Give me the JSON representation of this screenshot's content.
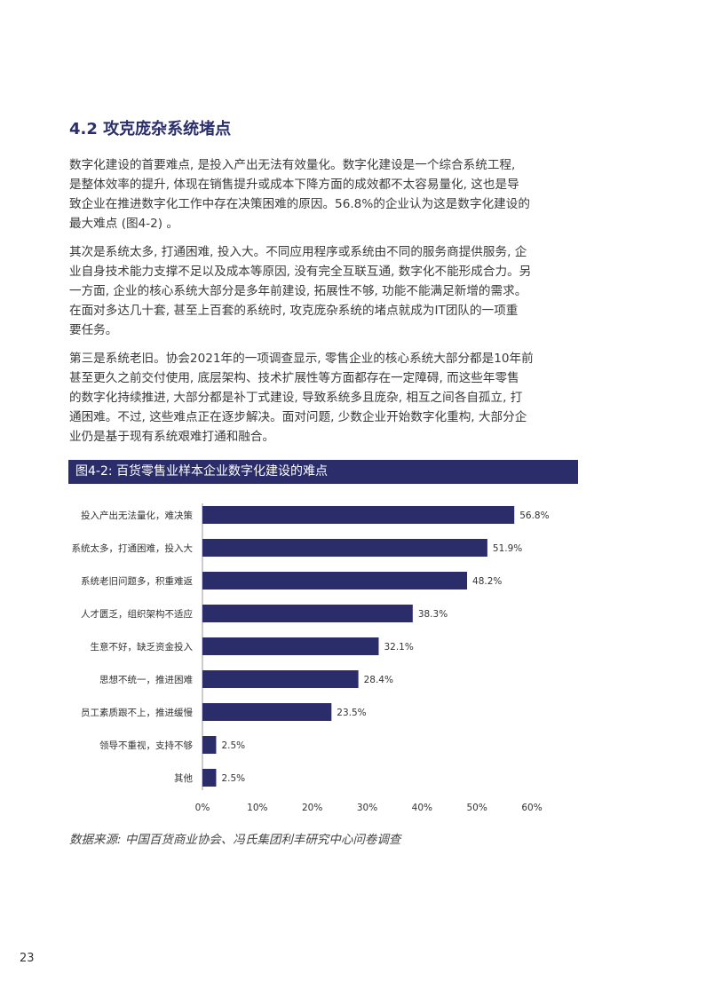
{
  "section_title": "4.2 攻克庞杂系统堵点",
  "paragraphs": [
    [
      "数字化建设的首要难点, 是投入产出无法有效量化。数字化建设是一个综合系统工程,",
      "是整体效率的提升, 体现在销售提升或成本下降方面的成效都不太容易量化, 这也是导",
      "致企业在推进数字化工作中存在决策困难的原因。56.8%的企业认为这是数字化建设的",
      "最大难点 (图4-2) 。"
    ],
    [
      "其次是系统太多, 打通困难, 投入大。不同应用程序或系统由不同的服务商提供服务, 企",
      "业自身技术能力支撑不足以及成本等原因, 没有完全互联互通, 数字化不能形成合力。另",
      "一方面, 企业的核心系统大部分是多年前建设, 拓展性不够, 功能不能满足新增的需求。",
      "在面对多达几十套, 甚至上百套的系统时, 攻克庞杂系统的堵点就成为IT团队的一项重",
      "要任务。"
    ],
    [
      "第三是系统老旧。协会2021年的一项调查显示, 零售企业的核心系统大部分都是10年前",
      "甚至更久之前交付使用, 底层架构、技术扩展性等方面都存在一定障碍, 而这些年零售",
      "的数字化持续推进, 大部分都是补丁式建设, 导致系统多且庞杂, 相互之间各自孤立, 打",
      "通困难。不过, 这些难点正在逐步解决。面对问题, 少数企业开始数字化重构, 大部分企",
      "业仍是基于现有系统艰难打通和融合。"
    ]
  ],
  "chart_title": "图4-2: 百货零售业样本企业数字化建设的难点",
  "chart_data": {
    "type": "bar",
    "orientation": "horizontal",
    "title": "图4-2: 百货零售业样本企业数字化建设的难点",
    "categories": [
      "投入产出无法量化，难决策",
      "系统太多，打通困难，投入大",
      "系统老旧问题多，积重难返",
      "人才匮乏，组织架构不适应",
      "生意不好，缺乏资金投入",
      "思想不统一，推进困难",
      "员工素质跟不上，推进缓慢",
      "领导不重视，支持不够",
      "其他"
    ],
    "values": [
      56.8,
      51.9,
      48.2,
      38.3,
      32.1,
      28.4,
      23.5,
      2.5,
      2.5
    ],
    "value_labels": [
      "56.8%",
      "51.9%",
      "48.2%",
      "38.3%",
      "32.1%",
      "28.4%",
      "23.5%",
      "2.5%",
      "2.5%"
    ],
    "xlim": [
      0,
      60
    ],
    "xticks": [
      "0%",
      "10%",
      "20%",
      "30%",
      "40%",
      "50%",
      "60%"
    ],
    "grid": false,
    "bar_color": "#2b2d6b"
  },
  "source": "数据来源: 中国百货商业协会、冯氏集团利丰研究中心问卷调查",
  "page_number": "23"
}
